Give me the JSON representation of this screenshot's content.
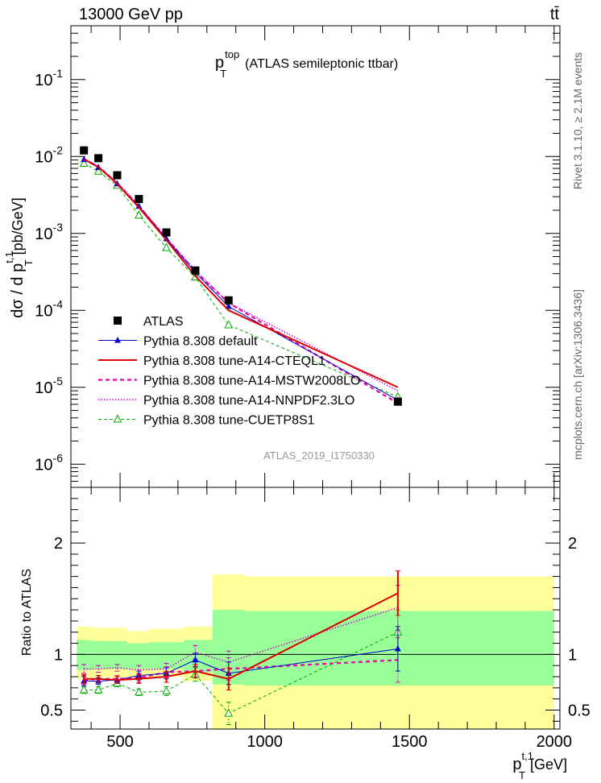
{
  "header": {
    "left": "13000 GeV pp",
    "right": "tt̄"
  },
  "plot_title": {
    "main": "p",
    "sup": "top",
    "sub": "T",
    "rest": "(ATLAS semileptonic ttbar)"
  },
  "side_labels": {
    "rivet": "Rivet 3.1.10, ≥ 2.1M events",
    "mcplots": "mcplots.cern.ch [arXiv:1306.3436]"
  },
  "analysis_tag": "ATLAS_2019_I1750330",
  "colors": {
    "data": "#000000",
    "default": "#0000cc",
    "cteq": "#dd0000",
    "mstw": "#ee00aa",
    "nnpdf": "#cc00cc",
    "cuetp": "#00aa00",
    "band_inner": "#99ff99",
    "band_outer": "#ffff99"
  },
  "chart_data": [
    {
      "type": "line",
      "yscale": "log",
      "ylabel": {
        "main": "dσ / d p",
        "sup": "t,1",
        "sub": "T",
        "rest": "[pb/GeV]"
      },
      "xlim": [
        330,
        2020
      ],
      "ylim": [
        5e-07,
        0.5
      ],
      "y_ticks": [
        {
          "v": 1e-06,
          "exp": "-6"
        },
        {
          "v": 1e-05,
          "exp": "-5"
        },
        {
          "v": 0.0001,
          "exp": "-4"
        },
        {
          "v": 0.001,
          "exp": "-3"
        },
        {
          "v": 0.01,
          "exp": "-2"
        },
        {
          "v": 0.1,
          "exp": "-1"
        }
      ],
      "legend_position": "bottom-left",
      "series": [
        {
          "key": "atlas",
          "name": "ATLAS",
          "style": "data",
          "x": [
            375,
            425,
            490,
            565,
            660,
            760,
            875,
            1460
          ],
          "y": [
            0.012,
            0.0095,
            0.0057,
            0.0028,
            0.00103,
            0.00033,
            0.000135,
            6.5e-06
          ]
        },
        {
          "key": "default",
          "name": "Pythia 8.308 default",
          "style": "default",
          "x": [
            375,
            425,
            490,
            565,
            660,
            760,
            875,
            1460
          ],
          "y": [
            0.0091,
            0.0072,
            0.0044,
            0.00225,
            0.00085,
            0.00031,
            0.000112,
            6.8e-06
          ]
        },
        {
          "key": "cteq",
          "name": "Pythia 8.308 tune-A14-CTEQL1",
          "style": "cteq",
          "x": [
            375,
            425,
            490,
            565,
            660,
            760,
            875,
            1460
          ],
          "y": [
            0.0092,
            0.0073,
            0.0044,
            0.00218,
            0.00082,
            0.00028,
            0.0001,
            1e-05
          ]
        },
        {
          "key": "mstw",
          "name": "Pythia 8.308 tune-A14-MSTW2008LO",
          "style": "mstw",
          "x": [
            375,
            425,
            490,
            565,
            660,
            760,
            875,
            1460
          ],
          "y": [
            0.0093,
            0.0074,
            0.0045,
            0.00225,
            0.00086,
            0.00032,
            0.000125,
            6.2e-06
          ]
        },
        {
          "key": "nnpdf",
          "name": "Pythia 8.308 tune-A14-NNPDF2.3LO",
          "style": "nnpdf",
          "x": [
            375,
            425,
            490,
            565,
            660,
            760,
            875,
            1460
          ],
          "y": [
            0.0094,
            0.0074,
            0.0046,
            0.0023,
            0.00088,
            0.00033,
            0.000125,
            9e-06
          ]
        },
        {
          "key": "cuetp",
          "name": "Pythia 8.308 tune-CUETP8S1",
          "style": "cuetp",
          "x": [
            375,
            425,
            490,
            565,
            660,
            760,
            875,
            1460
          ],
          "y": [
            0.0081,
            0.0064,
            0.0042,
            0.00172,
            0.00065,
            0.00027,
            6.45e-05,
            7.5e-06
          ]
        }
      ]
    },
    {
      "type": "line",
      "ylabel": "Ratio to ATLAS",
      "xlabel": {
        "main": "p",
        "sup": "t,1",
        "sub": "T",
        "rest": "[GeV]"
      },
      "xlim": [
        330,
        2020
      ],
      "ylim": [
        0.33,
        2.5
      ],
      "y_ticks": [
        {
          "v": 0.5,
          "label": "0.5"
        },
        {
          "v": 1,
          "label": "1"
        },
        {
          "v": 2,
          "label": "2"
        }
      ],
      "x_ticks": [
        {
          "v": 500,
          "label": "500"
        },
        {
          "v": 1000,
          "label": "1000"
        },
        {
          "v": 1500,
          "label": "1500"
        },
        {
          "v": 2000,
          "label": "2000"
        }
      ],
      "bands": [
        {
          "x0": 350,
          "x1": 400,
          "outer": [
            0.78,
            1.25
          ],
          "inner": [
            0.86,
            1.13
          ]
        },
        {
          "x0": 400,
          "x1": 450,
          "outer": [
            0.79,
            1.24
          ],
          "inner": [
            0.87,
            1.12
          ]
        },
        {
          "x0": 450,
          "x1": 525,
          "outer": [
            0.79,
            1.24
          ],
          "inner": [
            0.87,
            1.12
          ]
        },
        {
          "x0": 525,
          "x1": 600,
          "outer": [
            0.79,
            1.21
          ],
          "inner": [
            0.87,
            1.1
          ]
        },
        {
          "x0": 600,
          "x1": 720,
          "outer": [
            0.8,
            1.23
          ],
          "inner": [
            0.87,
            1.11
          ]
        },
        {
          "x0": 720,
          "x1": 820,
          "outer": [
            0.76,
            1.25
          ],
          "inner": [
            0.84,
            1.13
          ]
        },
        {
          "x0": 820,
          "x1": 930,
          "outer": [
            0.33,
            1.72
          ],
          "inner": [
            0.73,
            1.4
          ]
        },
        {
          "x0": 930,
          "x1": 2000,
          "outer": [
            0.33,
            1.7
          ],
          "inner": [
            0.72,
            1.39
          ]
        }
      ],
      "series": [
        {
          "key": "default",
          "style": "default",
          "x": [
            375,
            425,
            490,
            565,
            660,
            760,
            875,
            1460
          ],
          "y": [
            0.76,
            0.76,
            0.77,
            0.81,
            0.83,
            0.95,
            0.83,
            1.05
          ],
          "err": [
            0.04,
            0.03,
            0.03,
            0.04,
            0.05,
            0.06,
            0.1,
            0.2
          ]
        },
        {
          "key": "cteq",
          "style": "cteq",
          "x": [
            375,
            425,
            490,
            565,
            660,
            760,
            875,
            1460
          ],
          "y": [
            0.78,
            0.78,
            0.77,
            0.78,
            0.8,
            0.85,
            0.78,
            1.55
          ],
          "err": [
            0.04,
            0.03,
            0.03,
            0.04,
            0.05,
            0.06,
            0.1,
            0.2
          ]
        },
        {
          "key": "mstw",
          "style": "mstw",
          "x": [
            375,
            425,
            490,
            565,
            660,
            760,
            875,
            1460
          ],
          "y": [
            0.77,
            0.78,
            0.78,
            0.79,
            0.84,
            0.85,
            0.87,
            0.95
          ],
          "err": [
            0.04,
            0.03,
            0.03,
            0.04,
            0.05,
            0.06,
            0.1,
            0.2
          ]
        },
        {
          "key": "nnpdf",
          "style": "nnpdf",
          "x": [
            375,
            425,
            490,
            565,
            660,
            760,
            875,
            1460
          ],
          "y": [
            0.87,
            0.87,
            0.88,
            0.86,
            0.87,
            1.02,
            0.93,
            1.42
          ],
          "err": [
            0.04,
            0.03,
            0.03,
            0.04,
            0.05,
            0.06,
            0.1,
            0.2
          ]
        },
        {
          "key": "cuetp",
          "style": "cuetp",
          "x": [
            375,
            425,
            490,
            565,
            660,
            760,
            875,
            1460
          ],
          "y": [
            0.68,
            0.68,
            0.74,
            0.66,
            0.67,
            0.82,
            0.47,
            1.2
          ],
          "err": [
            0.03,
            0.03,
            0.03,
            0.03,
            0.04,
            0.06,
            0.1,
            0.2
          ]
        }
      ]
    }
  ]
}
